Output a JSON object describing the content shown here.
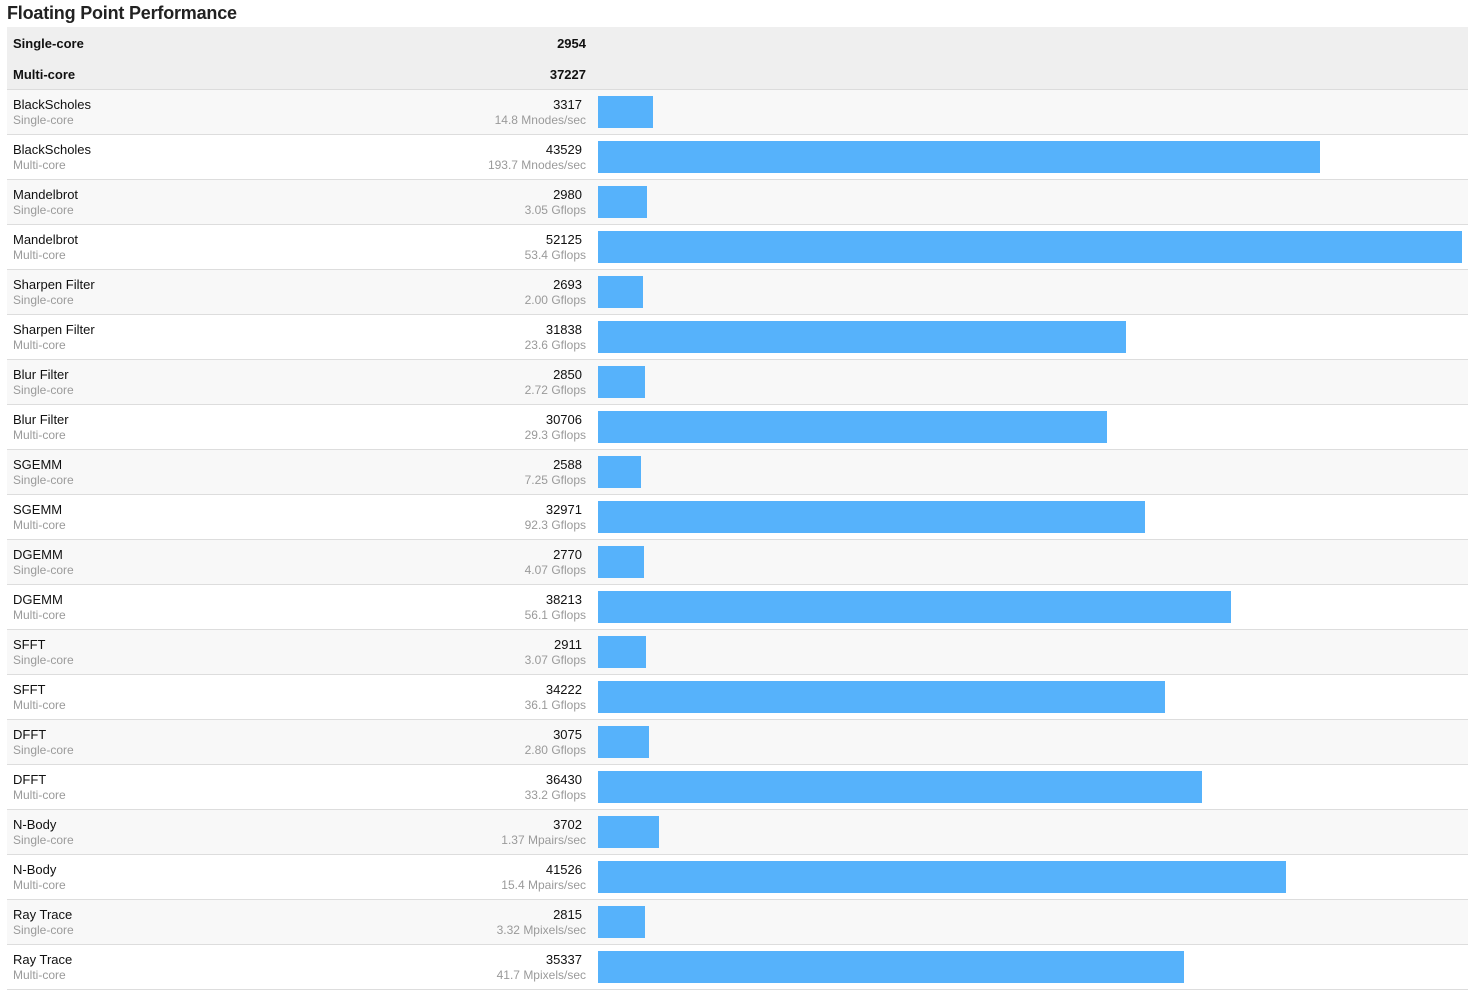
{
  "title": "Floating Point Performance",
  "colors": {
    "bar": "#56b2fb",
    "summary_bg": "#efefef",
    "alt_row_bg": "#f8f8f8"
  },
  "summary": [
    {
      "label": "Single-core",
      "score": "2954"
    },
    {
      "label": "Multi-core",
      "score": "37227"
    }
  ],
  "rows": [
    {
      "name": "BlackScholes",
      "mode": "Single-core",
      "score": "3317",
      "rate": "14.8 Mnodes/sec"
    },
    {
      "name": "BlackScholes",
      "mode": "Multi-core",
      "score": "43529",
      "rate": "193.7 Mnodes/sec"
    },
    {
      "name": "Mandelbrot",
      "mode": "Single-core",
      "score": "2980",
      "rate": "3.05 Gflops"
    },
    {
      "name": "Mandelbrot",
      "mode": "Multi-core",
      "score": "52125",
      "rate": "53.4 Gflops"
    },
    {
      "name": "Sharpen Filter",
      "mode": "Single-core",
      "score": "2693",
      "rate": "2.00 Gflops"
    },
    {
      "name": "Sharpen Filter",
      "mode": "Multi-core",
      "score": "31838",
      "rate": "23.6 Gflops"
    },
    {
      "name": "Blur Filter",
      "mode": "Single-core",
      "score": "2850",
      "rate": "2.72 Gflops"
    },
    {
      "name": "Blur Filter",
      "mode": "Multi-core",
      "score": "30706",
      "rate": "29.3 Gflops"
    },
    {
      "name": "SGEMM",
      "mode": "Single-core",
      "score": "2588",
      "rate": "7.25 Gflops"
    },
    {
      "name": "SGEMM",
      "mode": "Multi-core",
      "score": "32971",
      "rate": "92.3 Gflops"
    },
    {
      "name": "DGEMM",
      "mode": "Single-core",
      "score": "2770",
      "rate": "4.07 Gflops"
    },
    {
      "name": "DGEMM",
      "mode": "Multi-core",
      "score": "38213",
      "rate": "56.1 Gflops"
    },
    {
      "name": "SFFT",
      "mode": "Single-core",
      "score": "2911",
      "rate": "3.07 Gflops"
    },
    {
      "name": "SFFT",
      "mode": "Multi-core",
      "score": "34222",
      "rate": "36.1 Gflops"
    },
    {
      "name": "DFFT",
      "mode": "Single-core",
      "score": "3075",
      "rate": "2.80 Gflops"
    },
    {
      "name": "DFFT",
      "mode": "Multi-core",
      "score": "36430",
      "rate": "33.2 Gflops"
    },
    {
      "name": "N-Body",
      "mode": "Single-core",
      "score": "3702",
      "rate": "1.37 Mpairs/sec"
    },
    {
      "name": "N-Body",
      "mode": "Multi-core",
      "score": "41526",
      "rate": "15.4 Mpairs/sec"
    },
    {
      "name": "Ray Trace",
      "mode": "Single-core",
      "score": "2815",
      "rate": "3.32 Mpixels/sec"
    },
    {
      "name": "Ray Trace",
      "mode": "Multi-core",
      "score": "35337",
      "rate": "41.7 Mpixels/sec"
    }
  ],
  "chart_data": {
    "type": "bar",
    "orientation": "horizontal",
    "title": "Floating Point Performance",
    "categories": [
      "BlackScholes Single-core",
      "BlackScholes Multi-core",
      "Mandelbrot Single-core",
      "Mandelbrot Multi-core",
      "Sharpen Filter Single-core",
      "Sharpen Filter Multi-core",
      "Blur Filter Single-core",
      "Blur Filter Multi-core",
      "SGEMM Single-core",
      "SGEMM Multi-core",
      "DGEMM Single-core",
      "DGEMM Multi-core",
      "SFFT Single-core",
      "SFFT Multi-core",
      "DFFT Single-core",
      "DFFT Multi-core",
      "N-Body Single-core",
      "N-Body Multi-core",
      "Ray Trace Single-core",
      "Ray Trace Multi-core"
    ],
    "values": [
      3317,
      43529,
      2980,
      52125,
      2693,
      31838,
      2850,
      30706,
      2588,
      32971,
      2770,
      38213,
      2911,
      34222,
      3075,
      36430,
      3702,
      41526,
      2815,
      35337
    ],
    "xlim": [
      0,
      52125
    ],
    "grid": false
  }
}
